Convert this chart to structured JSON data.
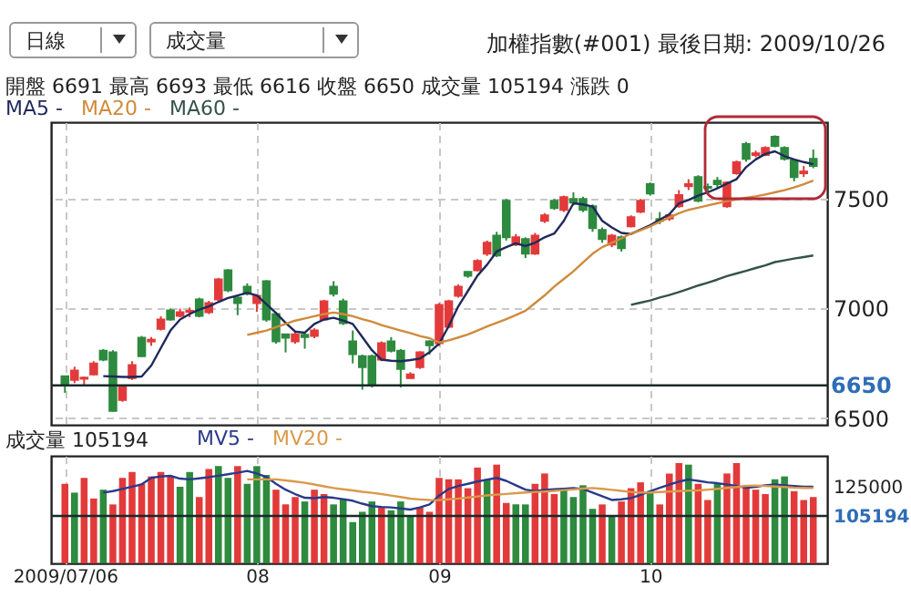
{
  "chart_data": [
    {
      "type": "candlestick",
      "title": "加權指數(#001)  最後日期: 2009/10/26",
      "subtitle": "開盤 6691  最高 6693  最低 6616  收盤 6650  成交量 105194  漲跌 0",
      "annotations": [
        "日線",
        "成交量"
      ],
      "categories": [
        "2009/07/06",
        null,
        null,
        null,
        null,
        null,
        null,
        null,
        null,
        null,
        null,
        null,
        null,
        null,
        null,
        null,
        null,
        null,
        null,
        null,
        "08",
        null,
        null,
        null,
        null,
        null,
        null,
        null,
        null,
        null,
        null,
        null,
        null,
        null,
        null,
        null,
        null,
        null,
        null,
        "09",
        null,
        null,
        null,
        null,
        null,
        null,
        null,
        null,
        null,
        null,
        null,
        null,
        null,
        null,
        null,
        null,
        null,
        null,
        null,
        null,
        null,
        "10",
        null,
        null,
        null,
        null,
        null,
        null,
        null,
        null,
        null,
        null,
        null,
        null,
        null,
        null,
        null,
        null,
        null
      ],
      "ohlc": [
        [
          6691,
          6693,
          6616,
          6650
        ],
        [
          6675,
          6735,
          6660,
          6717
        ],
        [
          6680,
          6690,
          6650,
          6685
        ],
        [
          6700,
          6760,
          6695,
          6750
        ],
        [
          6808,
          6815,
          6760,
          6767
        ],
        [
          6800,
          6810,
          6530,
          6533
        ],
        [
          6583,
          6650,
          6575,
          6642
        ],
        [
          6683,
          6760,
          6675,
          6742
        ],
        [
          6867,
          6875,
          6780,
          6783
        ],
        [
          6850,
          6870,
          6830,
          6858
        ],
        [
          6908,
          6965,
          6900,
          6950
        ],
        [
          6992,
          7000,
          6945,
          6950
        ],
        [
          6967,
          7000,
          6960,
          6983
        ],
        [
          6985,
          7005,
          6960,
          6990
        ],
        [
          7042,
          7050,
          6960,
          6967
        ],
        [
          6983,
          7035,
          6975,
          7025
        ],
        [
          7042,
          7140,
          7030,
          7133
        ],
        [
          7175,
          7180,
          7075,
          7083
        ],
        [
          7050,
          7055,
          6970,
          7025
        ],
        [
          7100,
          7115,
          7060,
          7067
        ],
        [
          7025,
          7065,
          6985,
          7058
        ],
        [
          7125,
          7130,
          6940,
          6950
        ],
        [
          6975,
          6985,
          6840,
          6850
        ],
        [
          6883,
          6885,
          6800,
          6867
        ],
        [
          6850,
          6895,
          6840,
          6883
        ],
        [
          6880,
          6892,
          6817,
          6870
        ],
        [
          6875,
          6910,
          6865,
          6900
        ],
        [
          6950,
          7040,
          6945,
          7033
        ],
        [
          7100,
          7125,
          7055,
          7067
        ],
        [
          7033,
          7045,
          6925,
          6933
        ],
        [
          6850,
          6900,
          6750,
          6792
        ],
        [
          6783,
          6790,
          6630,
          6733
        ],
        [
          6783,
          6790,
          6640,
          6650
        ],
        [
          6767,
          6850,
          6760,
          6842
        ],
        [
          6850,
          6870,
          6800,
          6808
        ],
        [
          6808,
          6815,
          6640,
          6725
        ],
        [
          6683,
          6710,
          6680,
          6700
        ],
        [
          6733,
          6805,
          6725,
          6800
        ],
        [
          6850,
          6855,
          6790,
          6833
        ],
        [
          6842,
          7025,
          6830,
          7017
        ],
        [
          6917,
          7040,
          6910,
          7033
        ],
        [
          7058,
          7110,
          7050,
          7100
        ],
        [
          7167,
          7170,
          7140,
          7150
        ],
        [
          7175,
          7225,
          7170,
          7217
        ],
        [
          7250,
          7310,
          7240,
          7300
        ],
        [
          7333,
          7350,
          7235,
          7242
        ],
        [
          7492,
          7500,
          7310,
          7325
        ],
        [
          7292,
          7340,
          7285,
          7325
        ],
        [
          7317,
          7325,
          7230,
          7250
        ],
        [
          7250,
          7345,
          7245,
          7333
        ],
        [
          7400,
          7435,
          7390,
          7425
        ],
        [
          7492,
          7500,
          7450,
          7458
        ],
        [
          7450,
          7515,
          7440,
          7508
        ],
        [
          7500,
          7530,
          7470,
          7483
        ],
        [
          7500,
          7510,
          7440,
          7450
        ],
        [
          7467,
          7475,
          7350,
          7367
        ],
        [
          7358,
          7370,
          7300,
          7317
        ],
        [
          7292,
          7340,
          7280,
          7333
        ],
        [
          7325,
          7333,
          7260,
          7275
        ],
        [
          7375,
          7425,
          7370,
          7417
        ],
        [
          7442,
          7500,
          7435,
          7492
        ],
        [
          7567,
          7575,
          7515,
          7525
        ],
        [
          7408,
          7440,
          7385,
          7400
        ],
        [
          7410,
          7430,
          7400,
          7425
        ],
        [
          7467,
          7540,
          7460,
          7517
        ],
        [
          7558,
          7590,
          7540,
          7567
        ],
        [
          7600,
          7608,
          7485,
          7492
        ],
        [
          7555,
          7570,
          7530,
          7550
        ],
        [
          7583,
          7600,
          7550,
          7567
        ],
        [
          7467,
          7580,
          7460,
          7575
        ],
        [
          7617,
          7675,
          7610,
          7667
        ],
        [
          7750,
          7760,
          7670,
          7683
        ],
        [
          7700,
          7720,
          7690,
          7708
        ],
        [
          7700,
          7740,
          7695,
          7733
        ],
        [
          7783,
          7790,
          7735,
          7742
        ],
        [
          7733,
          7740,
          7675,
          7683
        ],
        [
          7675,
          7680,
          7580,
          7600
        ],
        [
          7617,
          7650,
          7600,
          7625
        ],
        [
          7683,
          7725,
          7640,
          7650
        ]
      ],
      "colors": [
        "#2d8a3e",
        "#e23a3a",
        "#e23a3a",
        "#e23a3a",
        "#2d8a3e",
        "#2d8a3e",
        "#e23a3a",
        "#e23a3a",
        "#2d8a3e",
        "#e23a3a",
        "#e23a3a",
        "#2d8a3e",
        "#e23a3a",
        "#e23a3a",
        "#2d8a3e",
        "#e23a3a",
        "#e23a3a",
        "#2d8a3e",
        "#2d8a3e",
        "#2d8a3e",
        "#e23a3a",
        "#2d8a3e",
        "#2d8a3e",
        "#2d8a3e",
        "#e23a3a",
        "#2d8a3e",
        "#e23a3a",
        "#e23a3a",
        "#2d8a3e",
        "#2d8a3e",
        "#2d8a3e",
        "#2d8a3e",
        "#2d8a3e",
        "#e23a3a",
        "#2d8a3e",
        "#2d8a3e",
        "#e23a3a",
        "#e23a3a",
        "#2d8a3e",
        "#e23a3a",
        "#e23a3a",
        "#e23a3a",
        "#2d8a3e",
        "#e23a3a",
        "#e23a3a",
        "#2d8a3e",
        "#2d8a3e",
        "#e23a3a",
        "#2d8a3e",
        "#e23a3a",
        "#e23a3a",
        "#2d8a3e",
        "#e23a3a",
        "#2d8a3e",
        "#2d8a3e",
        "#2d8a3e",
        "#2d8a3e",
        "#e23a3a",
        "#2d8a3e",
        "#e23a3a",
        "#e23a3a",
        "#2d8a3e",
        "#2d8a3e",
        "#e23a3a",
        "#e23a3a",
        "#e23a3a",
        "#2d8a3e",
        "#2d8a3e",
        "#2d8a3e",
        "#e23a3a",
        "#e23a3a",
        "#2d8a3e",
        "#e23a3a",
        "#e23a3a",
        "#2d8a3e",
        "#2d8a3e",
        "#2d8a3e",
        "#e23a3a",
        "#2d8a3e"
      ],
      "series": [
        {
          "name": "MA5 -",
          "type": "line",
          "color": "#1f2a5a",
          "values": [
            null,
            null,
            null,
            null,
            6692,
            6690,
            6688,
            6688,
            6690,
            6740,
            6820,
            6900,
            6950,
            6975,
            6995,
            7010,
            7030,
            7048,
            7060,
            7072,
            7060,
            7020,
            6980,
            6935,
            6895,
            6890,
            6930,
            6950,
            6958,
            6945,
            6930,
            6870,
            6810,
            6767,
            6762,
            6760,
            6765,
            6772,
            6800,
            6840,
            6920,
            7010,
            7080,
            7150,
            7200,
            7260,
            7280,
            7298,
            7285,
            7300,
            7325,
            7342,
            7400,
            7480,
            7475,
            7465,
            7400,
            7370,
            7345,
            7340,
            7360,
            7380,
            7405,
            7430,
            7480,
            7495,
            7515,
            7530,
            7548,
            7570,
            7590,
            7645,
            7680,
            7705,
            7717,
            7695,
            7680,
            7668,
            7658
          ]
        },
        {
          "name": "MA20 -",
          "type": "line",
          "color": "#d08a3c",
          "values": [
            null,
            null,
            null,
            null,
            null,
            null,
            null,
            null,
            null,
            null,
            null,
            null,
            null,
            null,
            null,
            null,
            null,
            null,
            null,
            6880,
            6890,
            6900,
            6915,
            6930,
            6945,
            6955,
            6965,
            6975,
            6982,
            6975,
            6965,
            6952,
            6940,
            6925,
            6912,
            6900,
            6888,
            6875,
            6865,
            6845,
            6855,
            6868,
            6882,
            6900,
            6918,
            6935,
            6952,
            6970,
            6990,
            7025,
            7060,
            7100,
            7135,
            7170,
            7210,
            7250,
            7280,
            7300,
            7320,
            7342,
            7357,
            7375,
            7395,
            7415,
            7435,
            7450,
            7460,
            7470,
            7480,
            7490,
            7497,
            7505,
            7512,
            7520,
            7530,
            7540,
            7552,
            7567,
            7583
          ]
        },
        {
          "name": "MA60 -",
          "type": "line",
          "color": "#35524a",
          "values": [
            null,
            null,
            null,
            null,
            null,
            null,
            null,
            null,
            null,
            null,
            null,
            null,
            null,
            null,
            null,
            null,
            null,
            null,
            null,
            null,
            null,
            null,
            null,
            null,
            null,
            null,
            null,
            null,
            null,
            null,
            null,
            null,
            null,
            null,
            null,
            null,
            null,
            null,
            null,
            null,
            null,
            null,
            null,
            null,
            null,
            null,
            null,
            null,
            null,
            null,
            null,
            null,
            null,
            null,
            null,
            null,
            null,
            null,
            null,
            7017,
            7027,
            7037,
            7050,
            7062,
            7075,
            7090,
            7105,
            7118,
            7132,
            7148,
            7160,
            7172,
            7185,
            7197,
            7212,
            7220,
            7228,
            7235,
            7242
          ]
        }
      ],
      "ylim": [
        6470,
        7850
      ],
      "yticks": [
        6500,
        7000,
        7500
      ],
      "grid": true,
      "tick_labels": "y",
      "legend": "top left",
      "ref_lines": [
        {
          "axis": "y",
          "value": 6650,
          "label": "6650"
        }
      ]
    },
    {
      "type": "bar",
      "title": "成交量 105194",
      "categories": [
        "2009/07/06",
        null,
        null,
        null,
        null,
        null,
        null,
        null,
        null,
        null,
        null,
        null,
        null,
        null,
        null,
        null,
        null,
        null,
        null,
        null,
        "08",
        null,
        null,
        null,
        null,
        null,
        null,
        null,
        null,
        null,
        null,
        null,
        null,
        null,
        null,
        null,
        null,
        null,
        null,
        "09",
        null,
        null,
        null,
        null,
        null,
        null,
        null,
        null,
        null,
        null,
        null,
        null,
        null,
        null,
        null,
        null,
        null,
        null,
        null,
        null,
        null,
        "10",
        null,
        null,
        null,
        null,
        null,
        null,
        null,
        null,
        null,
        null,
        null,
        null,
        null,
        null,
        null,
        null,
        null
      ],
      "series": [
        {
          "type": "bar",
          "values": [
            127000,
            121000,
            131000,
            117000,
            123000,
            113000,
            131000,
            135000,
            127000,
            132000,
            135000,
            132000,
            125000,
            135000,
            118000,
            137000,
            139000,
            131000,
            139000,
            127000,
            139000,
            133000,
            123000,
            113000,
            118000,
            115000,
            123000,
            120000,
            113000,
            117000,
            101000,
            108000,
            115000,
            111000,
            109000,
            115000,
            105000,
            111000,
            108000,
            131000,
            130000,
            130000,
            124000,
            138000,
            130000,
            140000,
            114000,
            113000,
            113000,
            127000,
            134000,
            120000,
            124000,
            118000,
            126000,
            110000,
            113000,
            105000,
            115000,
            124000,
            128000,
            122000,
            113000,
            134000,
            141000,
            140000,
            127000,
            116000,
            127000,
            134000,
            141000,
            125000,
            123000,
            120000,
            130000,
            132000,
            122000,
            116000,
            118000
          ],
          "colors": [
            "#e23a3a",
            "#2d8a3e",
            "#e23a3a",
            "#e23a3a",
            "#2d8a3e",
            "#e23a3a",
            "#e23a3a",
            "#e23a3a",
            "#e23a3a",
            "#e23a3a",
            "#e23a3a",
            "#e23a3a",
            "#2d8a3e",
            "#2d8a3e",
            "#e23a3a",
            "#e23a3a",
            "#2d8a3e",
            "#2d8a3e",
            "#e23a3a",
            "#2d8a3e",
            "#2d8a3e",
            "#2d8a3e",
            "#e23a3a",
            "#e23a3a",
            "#e23a3a",
            "#2d8a3e",
            "#e23a3a",
            "#e23a3a",
            "#2d8a3e",
            "#2d8a3e",
            "#2d8a3e",
            "#2d8a3e",
            "#2d8a3e",
            "#e23a3a",
            "#2d8a3e",
            "#2d8a3e",
            "#2d8a3e",
            "#e23a3a",
            "#e23a3a",
            "#e23a3a",
            "#e23a3a",
            "#e23a3a",
            "#e23a3a",
            "#e23a3a",
            "#2d8a3e",
            "#e23a3a",
            "#e23a3a",
            "#2d8a3e",
            "#2d8a3e",
            "#e23a3a",
            "#e23a3a",
            "#e23a3a",
            "#2d8a3e",
            "#2d8a3e",
            "#2d8a3e",
            "#2d8a3e",
            "#e23a3a",
            "#2d8a3e",
            "#e23a3a",
            "#e23a3a",
            "#e23a3a",
            "#2d8a3e",
            "#e23a3a",
            "#e23a3a",
            "#e23a3a",
            "#2d8a3e",
            "#e23a3a",
            "#e23a3a",
            "#2d8a3e",
            "#e23a3a",
            "#e23a3a",
            "#e23a3a",
            "#e23a3a",
            "#e23a3a",
            "#2d8a3e",
            "#2d8a3e",
            "#e23a3a",
            "#e23a3a",
            "#e23a3a"
          ]
        },
        {
          "name": "MV5 -",
          "type": "line",
          "color": "#2a3a8a",
          "values": [
            null,
            null,
            null,
            null,
            121000,
            122000,
            123500,
            125000,
            126600,
            131000,
            132000,
            132400,
            130500,
            130000,
            130700,
            131500,
            132500,
            133500,
            134500,
            135700,
            134000,
            131600,
            127000,
            123000,
            120000,
            117500,
            117200,
            118000,
            117500,
            116500,
            115500,
            113500,
            111800,
            111300,
            111000,
            110300,
            109500,
            111000,
            113000,
            119000,
            123500,
            125500,
            127000,
            128500,
            129800,
            131000,
            129000,
            126000,
            123000,
            122000,
            122800,
            123300,
            123600,
            124000,
            123500,
            121000,
            118500,
            116000,
            116500,
            117300,
            119500,
            122000,
            124200,
            126500,
            128500,
            129900,
            129000,
            128000,
            127400,
            126500,
            125500,
            124300,
            125000,
            126000,
            126600,
            126000,
            125500,
            125000,
            125000
          ]
        },
        {
          "name": "MV20 -",
          "type": "line",
          "color": "#d99a4a",
          "values": [
            null,
            null,
            null,
            null,
            null,
            null,
            null,
            null,
            null,
            null,
            null,
            null,
            null,
            null,
            null,
            null,
            null,
            null,
            null,
            130000,
            130000,
            130000,
            130000,
            129300,
            128500,
            127700,
            126500,
            125300,
            124100,
            123300,
            122500,
            121600,
            120900,
            120000,
            119000,
            118000,
            116900,
            116400,
            116000,
            115900,
            116500,
            117000,
            117700,
            118400,
            119100,
            119600,
            120100,
            120600,
            121100,
            121500,
            121700,
            122200,
            122700,
            123200,
            123700,
            124100,
            123600,
            122900,
            122200,
            121500,
            121000,
            121100,
            121400,
            121700,
            122000,
            122300,
            122500,
            123000,
            123600,
            124200,
            124800,
            125600,
            125800,
            125500,
            125100,
            124800,
            124400,
            124200,
            124100
          ]
        }
      ],
      "ylim": [
        73000,
        146000
      ],
      "yticks": [
        105194,
        125000
      ],
      "grid": "x",
      "legend": "top left",
      "ref_lines": [
        {
          "axis": "y",
          "value": 105194
        }
      ]
    }
  ]
}
